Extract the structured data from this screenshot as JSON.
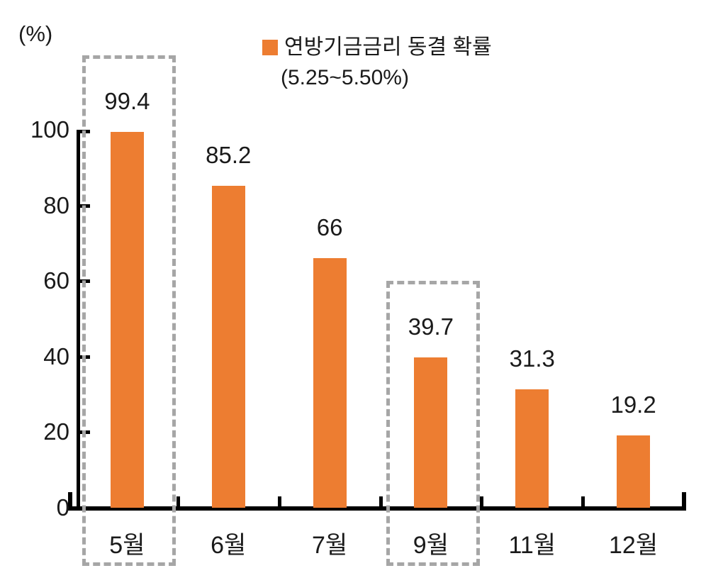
{
  "chart_data": {
    "type": "bar",
    "unit_label": "(%)",
    "legend": {
      "label": "연방기금금리 동결 확률",
      "sublabel": "(5.25~5.50%)",
      "marker_color": "#ED7D31",
      "position": "top"
    },
    "categories": [
      "5월",
      "6월",
      "7월",
      "9월",
      "11월",
      "12월"
    ],
    "values": [
      99.4,
      85.2,
      66,
      39.7,
      31.3,
      19.2
    ],
    "value_labels": [
      "99.4",
      "85.2",
      "66",
      "39.7",
      "31.3",
      "19.2"
    ],
    "ylim": [
      0,
      100
    ],
    "yticks": [
      0,
      20,
      40,
      60,
      80,
      100
    ],
    "grid": false,
    "bar_color": "#ED7D31",
    "axis_color": "#000000",
    "text_color": "#1a1a1a",
    "highlight_box_color": "#A6A6A6",
    "highlighted_categories": [
      "5월",
      "9월"
    ]
  }
}
